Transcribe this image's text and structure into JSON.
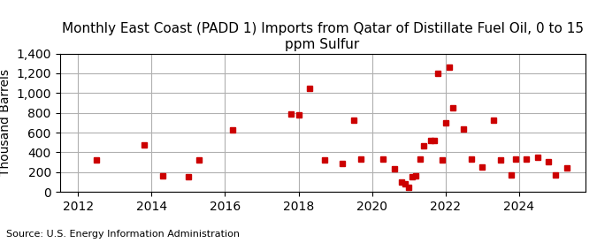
{
  "chart_data": {
    "type": "scatter",
    "title": "Monthly East Coast (PADD 1) Imports from Qatar of Distillate Fuel Oil, 0 to 15 ppm Sulfur",
    "y_label": "Thousand Barrels",
    "annotations": [
      "Source: U.S. Energy Information Administration"
    ],
    "color": "#cc0000",
    "marker": "square",
    "grid": true,
    "xlim": [
      2011.5,
      2025.8
    ],
    "xticks": [
      2012,
      2014,
      2016,
      2018,
      2020,
      2022,
      2024
    ],
    "ylim": [
      0,
      1400
    ],
    "yticks": [
      0,
      200,
      400,
      600,
      800,
      {
        "value": 1000,
        "label": "1,000"
      },
      {
        "value": 1200,
        "label": "1,200"
      },
      {
        "value": 1400,
        "label": "1,400"
      }
    ],
    "x": [
      2012.5,
      2013.8,
      2014.3,
      2015.0,
      2015.3,
      2016.2,
      2017.8,
      2018.0,
      2018.3,
      2018.7,
      2019.2,
      2019.5,
      2019.7,
      2020.3,
      2020.6,
      2020.8,
      2020.9,
      2021.0,
      2021.1,
      2021.2,
      2021.3,
      2021.4,
      2021.6,
      2021.7,
      2021.8,
      2021.9,
      2022.0,
      2022.1,
      2022.2,
      2022.5,
      2022.7,
      2023.0,
      2023.3,
      2023.5,
      2023.8,
      2023.9,
      2024.2,
      2024.5,
      2024.8,
      2025.0,
      2025.3
    ],
    "values": [
      325,
      480,
      163,
      155,
      325,
      625,
      790,
      780,
      1050,
      325,
      290,
      730,
      330,
      330,
      235,
      100,
      80,
      45,
      150,
      160,
      330,
      470,
      520,
      520,
      1200,
      325,
      700,
      1260,
      855,
      640,
      330,
      250,
      730,
      325,
      170,
      330,
      330,
      350,
      310,
      175,
      245
    ]
  }
}
